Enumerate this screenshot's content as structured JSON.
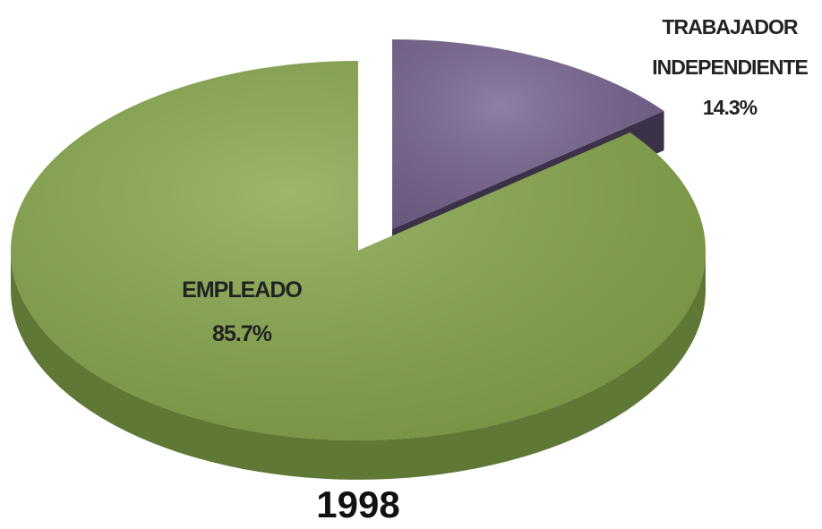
{
  "chart_data": {
    "type": "pie",
    "title": "1998",
    "categories": [
      "TRABAJADOR INDEPENDIENTE",
      "EMPLEADO"
    ],
    "values": [
      14.3,
      85.7
    ],
    "value_labels": [
      "14.3%",
      "85.7%"
    ],
    "colors": [
      "#76628f",
      "#86a64b"
    ]
  }
}
